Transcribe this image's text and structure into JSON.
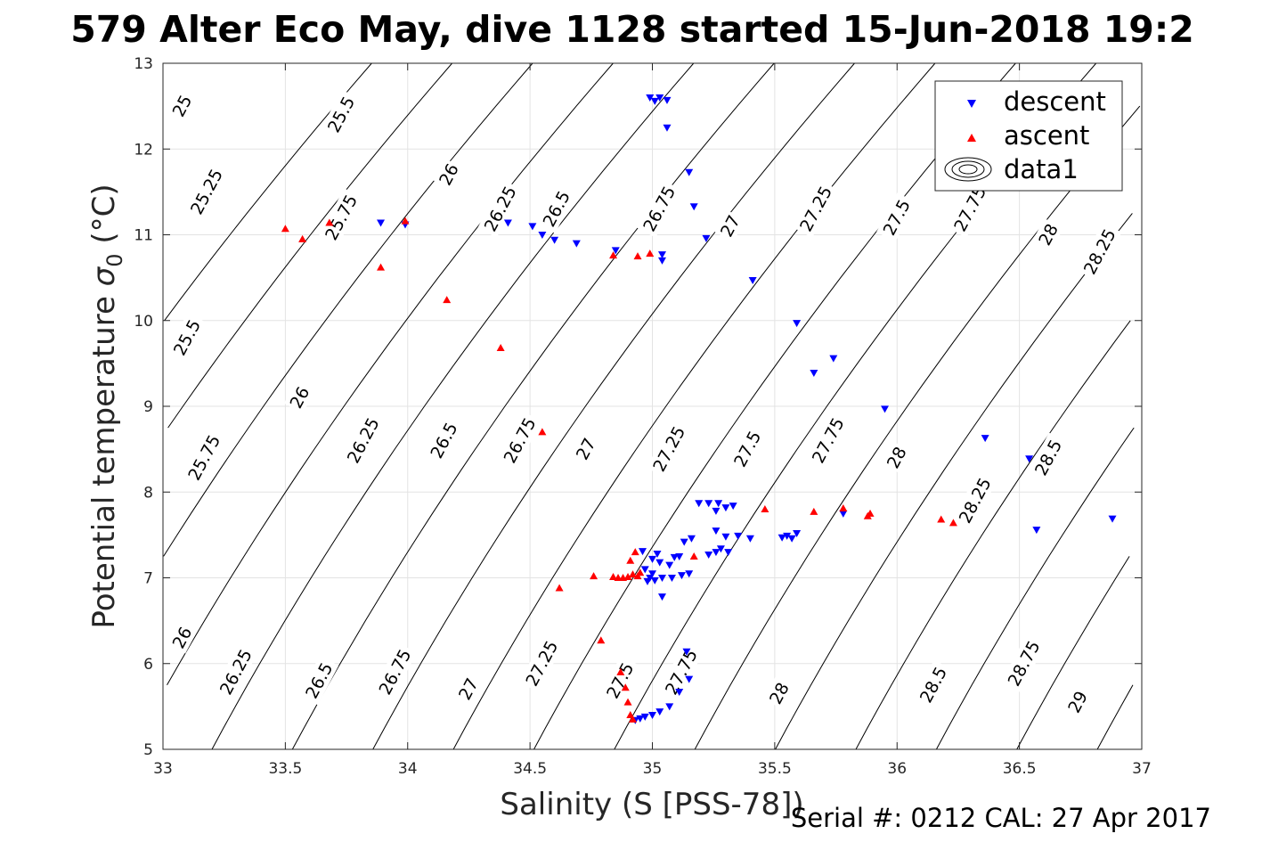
{
  "page": {
    "title": "579 Alter Eco May, dive 1128 started 15-Jun-2018 19:2",
    "footer": "Serial #: 0212  CAL: 27 Apr 2017"
  },
  "chart_data": {
    "type": "scatter",
    "title": "579 Alter Eco May, dive 1128 started 15-Jun-2018 19:2",
    "xlabel": "Salinity (S [PSS-78])",
    "ylabel": "Potential temperature σ₀ (°C)",
    "ylabel_main": "Potential temperature ",
    "ylabel_sigma": "σ",
    "ylabel_sub": "0",
    "ylabel_unit": " (°C)",
    "xlim": [
      33,
      37
    ],
    "ylim": [
      5,
      13
    ],
    "xticks": [
      "33",
      "33.5",
      "34",
      "34.5",
      "35",
      "35.5",
      "36",
      "36.5",
      "37"
    ],
    "yticks": [
      "5",
      "6",
      "7",
      "8",
      "9",
      "10",
      "11",
      "12",
      "13"
    ],
    "grid": true,
    "legend_position": "top-right",
    "legend": [
      "descent",
      "ascent",
      "data1"
    ],
    "colors": {
      "descent": "#0000ff",
      "ascent": "#ff0000",
      "contour": "#000000",
      "grid": "#e3e3e3"
    },
    "series": [
      {
        "name": "descent",
        "marker": "triangle-down",
        "points": [
          [
            33.89,
            11.14
          ],
          [
            33.99,
            11.12
          ],
          [
            34.41,
            11.14
          ],
          [
            34.51,
            11.1
          ],
          [
            34.55,
            11.0
          ],
          [
            34.6,
            10.94
          ],
          [
            34.69,
            10.9
          ],
          [
            34.85,
            10.82
          ],
          [
            35.04,
            10.77
          ],
          [
            35.04,
            10.7
          ],
          [
            35.22,
            10.96
          ],
          [
            34.99,
            12.6
          ],
          [
            35.01,
            12.56
          ],
          [
            35.03,
            12.6
          ],
          [
            35.06,
            12.57
          ],
          [
            35.06,
            12.25
          ],
          [
            35.15,
            11.73
          ],
          [
            35.17,
            11.33
          ],
          [
            35.41,
            10.47
          ],
          [
            35.59,
            9.97
          ],
          [
            35.66,
            9.39
          ],
          [
            35.74,
            9.56
          ],
          [
            35.95,
            8.97
          ],
          [
            36.36,
            8.63
          ],
          [
            36.54,
            8.39
          ],
          [
            36.57,
            7.56
          ],
          [
            36.88,
            7.69
          ],
          [
            35.78,
            7.75
          ],
          [
            35.55,
            7.49
          ],
          [
            35.57,
            7.46
          ],
          [
            35.59,
            7.52
          ],
          [
            35.53,
            7.47
          ],
          [
            35.19,
            7.87
          ],
          [
            35.23,
            7.87
          ],
          [
            35.26,
            7.78
          ],
          [
            35.3,
            7.82
          ],
          [
            35.33,
            7.84
          ],
          [
            35.27,
            7.87
          ],
          [
            35.26,
            7.55
          ],
          [
            35.3,
            7.48
          ],
          [
            35.35,
            7.49
          ],
          [
            35.4,
            7.46
          ],
          [
            35.26,
            7.3
          ],
          [
            35.28,
            7.34
          ],
          [
            35.31,
            7.3
          ],
          [
            35.23,
            7.27
          ],
          [
            35.16,
            7.46
          ],
          [
            35.13,
            7.42
          ],
          [
            35.09,
            7.24
          ],
          [
            35.11,
            7.25
          ],
          [
            35.07,
            7.15
          ],
          [
            35.02,
            7.28
          ],
          [
            35.0,
            7.22
          ],
          [
            35.03,
            7.18
          ],
          [
            34.96,
            7.31
          ],
          [
            34.97,
            7.1
          ],
          [
            35.0,
            7.05
          ],
          [
            34.99,
            7.0
          ],
          [
            34.98,
            6.96
          ],
          [
            35.01,
            6.97
          ],
          [
            35.04,
            7.0
          ],
          [
            35.08,
            7.0
          ],
          [
            35.12,
            7.03
          ],
          [
            35.15,
            7.05
          ],
          [
            35.04,
            6.78
          ],
          [
            35.14,
            6.14
          ],
          [
            35.15,
            5.82
          ],
          [
            35.11,
            5.67
          ],
          [
            35.07,
            5.5
          ],
          [
            35.03,
            5.44
          ],
          [
            35.0,
            5.4
          ],
          [
            34.97,
            5.38
          ],
          [
            34.95,
            5.36
          ],
          [
            34.93,
            5.34
          ]
        ]
      },
      {
        "name": "ascent",
        "marker": "triangle-up",
        "points": [
          [
            33.5,
            11.07
          ],
          [
            33.57,
            10.95
          ],
          [
            33.68,
            11.14
          ],
          [
            33.89,
            10.62
          ],
          [
            33.99,
            11.16
          ],
          [
            34.16,
            10.24
          ],
          [
            34.38,
            9.68
          ],
          [
            34.55,
            8.7
          ],
          [
            34.62,
            6.88
          ],
          [
            34.76,
            7.02
          ],
          [
            34.84,
            7.01
          ],
          [
            34.86,
            7.0
          ],
          [
            34.88,
            7.0
          ],
          [
            34.9,
            7.01
          ],
          [
            34.92,
            7.04
          ],
          [
            34.94,
            7.02
          ],
          [
            34.95,
            7.06
          ],
          [
            34.91,
            7.2
          ],
          [
            34.93,
            7.3
          ],
          [
            34.79,
            6.27
          ],
          [
            34.87,
            5.9
          ],
          [
            34.89,
            5.72
          ],
          [
            34.9,
            5.55
          ],
          [
            34.91,
            5.4
          ],
          [
            34.92,
            5.35
          ],
          [
            34.84,
            10.76
          ],
          [
            34.94,
            10.75
          ],
          [
            34.99,
            10.78
          ],
          [
            35.17,
            7.25
          ],
          [
            35.46,
            7.8
          ],
          [
            35.66,
            7.77
          ],
          [
            35.78,
            7.81
          ],
          [
            35.88,
            7.72
          ],
          [
            35.89,
            7.75
          ],
          [
            36.18,
            7.68
          ],
          [
            36.23,
            7.64
          ]
        ]
      }
    ],
    "contours": [
      {
        "level": "25",
        "label_x": 33.08,
        "label_y": 12.5
      },
      {
        "level": "25.25",
        "label_x": 33.18,
        "label_y": 11.5
      },
      {
        "level": "25.5",
        "label_x": 33.73,
        "label_y": 12.4
      },
      {
        "level": "25.75",
        "label_x": 33.73,
        "label_y": 11.2
      },
      {
        "level": "26",
        "label_x": 34.17,
        "label_y": 11.7
      },
      {
        "level": "26.25",
        "label_x": 34.38,
        "label_y": 11.3
      },
      {
        "level": "26.5",
        "label_x": 34.61,
        "label_y": 11.3
      },
      {
        "level": "26.75",
        "label_x": 35.03,
        "label_y": 11.3
      },
      {
        "level": "27",
        "label_x": 35.32,
        "label_y": 11.1
      },
      {
        "level": "27.25",
        "label_x": 35.67,
        "label_y": 11.3
      },
      {
        "level": "27.5",
        "label_x": 36.0,
        "label_y": 11.2
      },
      {
        "level": "27.75",
        "label_x": 36.3,
        "label_y": 11.3
      },
      {
        "level": "28",
        "label_x": 36.62,
        "label_y": 11.0
      },
      {
        "level": "28.25",
        "label_x": 36.83,
        "label_y": 10.8
      },
      {
        "level": "25.5",
        "label_x": 33.1,
        "label_y": 9.8
      },
      {
        "level": "25.75",
        "label_x": 33.17,
        "label_y": 8.4
      },
      {
        "level": "26",
        "label_x": 33.56,
        "label_y": 9.1
      },
      {
        "level": "26.25",
        "label_x": 33.82,
        "label_y": 8.6
      },
      {
        "level": "26.5",
        "label_x": 34.15,
        "label_y": 8.6
      },
      {
        "level": "26.75",
        "label_x": 34.46,
        "label_y": 8.6
      },
      {
        "level": "27",
        "label_x": 34.73,
        "label_y": 8.5
      },
      {
        "level": "27.25",
        "label_x": 35.07,
        "label_y": 8.5
      },
      {
        "level": "27.5",
        "label_x": 35.39,
        "label_y": 8.5
      },
      {
        "level": "27.75",
        "label_x": 35.72,
        "label_y": 8.6
      },
      {
        "level": "28",
        "label_x": 36.0,
        "label_y": 8.4
      },
      {
        "level": "28.25",
        "label_x": 36.32,
        "label_y": 7.9
      },
      {
        "level": "28.5",
        "label_x": 36.62,
        "label_y": 8.4
      },
      {
        "level": "26",
        "label_x": 33.08,
        "label_y": 6.3
      },
      {
        "level": "26.25",
        "label_x": 33.3,
        "label_y": 5.9
      },
      {
        "level": "26.5",
        "label_x": 33.64,
        "label_y": 5.8
      },
      {
        "level": "26.75",
        "label_x": 33.95,
        "label_y": 5.9
      },
      {
        "level": "27",
        "label_x": 34.25,
        "label_y": 5.7
      },
      {
        "level": "27.25",
        "label_x": 34.55,
        "label_y": 6.0
      },
      {
        "level": "27.5",
        "label_x": 34.87,
        "label_y": 5.8
      },
      {
        "level": "27.75",
        "label_x": 35.12,
        "label_y": 5.9
      },
      {
        "level": "28",
        "label_x": 35.52,
        "label_y": 5.65
      },
      {
        "level": "28.5",
        "label_x": 36.15,
        "label_y": 5.75
      },
      {
        "level": "28.75",
        "label_x": 36.52,
        "label_y": 6.0
      },
      {
        "level": "29",
        "label_x": 36.74,
        "label_y": 5.55
      }
    ]
  }
}
